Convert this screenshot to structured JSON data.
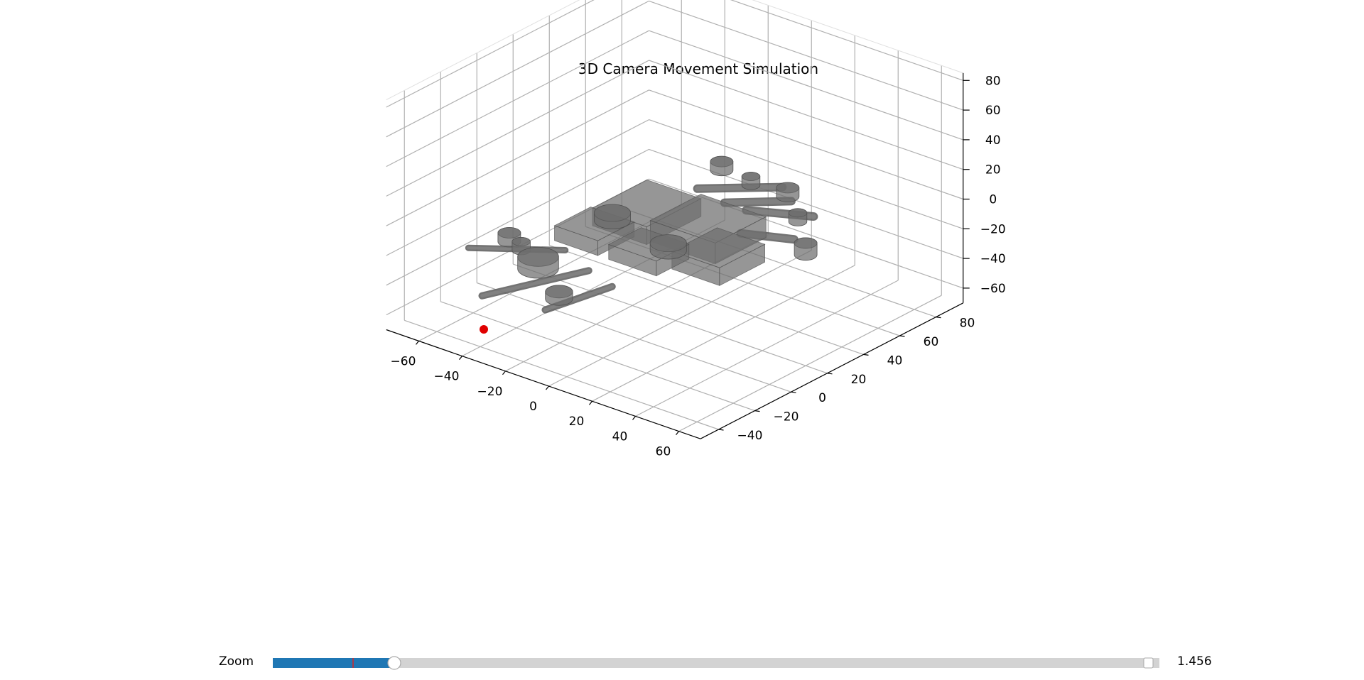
{
  "figure": {
    "title": "3D Camera Movement Simulation"
  },
  "chart_data": {
    "type": "3d-mesh",
    "title": "3D Camera Movement Simulation",
    "x_ticks": [
      "−60",
      "−40",
      "−20",
      "0",
      "20",
      "40",
      "60"
    ],
    "y_ticks": [
      "−40",
      "−20",
      "0",
      "20",
      "40",
      "60",
      "80"
    ],
    "z_ticks": [
      "−60",
      "−40",
      "−20",
      "0",
      "20",
      "40",
      "60",
      "80"
    ],
    "xlim": [
      -75,
      70
    ],
    "ylim": [
      -50,
      95
    ],
    "zlim": [
      -70,
      85
    ],
    "grid": true,
    "model_color": "#6e6e6e",
    "camera_marker_color": "#e00000"
  },
  "slider": {
    "label": "Zoom",
    "value_text": "1.456",
    "min": 1.0,
    "max": 4.0,
    "value": 1.456,
    "init_value": 1.27,
    "fill_color": "#1f77b4",
    "track_color": "#d3d3d3",
    "init_marker_color": "#d62728"
  }
}
